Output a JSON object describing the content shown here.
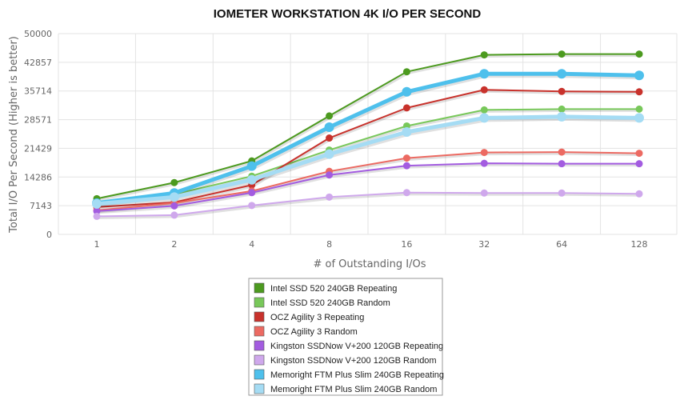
{
  "chart_data": {
    "type": "line",
    "title": "IOMETER WORKSTATION 4K I/O PER SECOND",
    "xlabel": "# of Outstanding I/Os",
    "ylabel": "Total I/O Per Second (Higher is better)",
    "categories": [
      "1",
      "2",
      "4",
      "8",
      "16",
      "32",
      "64",
      "128"
    ],
    "ylim": [
      0,
      50000
    ],
    "yticks": [
      "0",
      "7143",
      "14286",
      "21429",
      "28571",
      "35714",
      "42857",
      "50000"
    ],
    "grid": true,
    "legend_position": "bottom-center",
    "series": [
      {
        "name": "Intel SSD 520 240GB Repeating",
        "color": "#4c9a1f",
        "values": [
          8900,
          12900,
          18300,
          29500,
          40500,
          44700,
          44900,
          44900
        ]
      },
      {
        "name": "Intel SSD 520 240GB Random",
        "color": "#78c85a",
        "values": [
          8000,
          10000,
          14500,
          21000,
          27000,
          31000,
          31200,
          31200
        ]
      },
      {
        "name": "OCZ Agility 3 Repeating",
        "color": "#c8322c",
        "values": [
          6800,
          8000,
          12300,
          24000,
          31500,
          36000,
          35600,
          35500
        ]
      },
      {
        "name": "OCZ Agility 3 Random",
        "color": "#ec6a62",
        "values": [
          6000,
          7800,
          10800,
          15700,
          19000,
          20400,
          20500,
          20200
        ]
      },
      {
        "name": "Kingston SSDNow V+200 120GB Repeating",
        "color": "#a35ce0",
        "values": [
          5800,
          7100,
          10400,
          14800,
          17100,
          17700,
          17600,
          17600
        ]
      },
      {
        "name": "Kingston SSDNow V+200 120GB Random",
        "color": "#cfa8ec",
        "values": [
          4500,
          4800,
          7200,
          9300,
          10400,
          10300,
          10300,
          10100
        ]
      },
      {
        "name": "Memoright FTM Plus Slim 240GB Repeating",
        "color": "#4ec0ec",
        "values": [
          7800,
          10300,
          17000,
          26700,
          35500,
          40000,
          40000,
          39600
        ]
      },
      {
        "name": "Memoright FTM Plus Slim 240GB Random",
        "color": "#a5dcf4",
        "values": [
          7600,
          9300,
          13600,
          20000,
          25500,
          29000,
          29300,
          29000
        ]
      }
    ]
  }
}
